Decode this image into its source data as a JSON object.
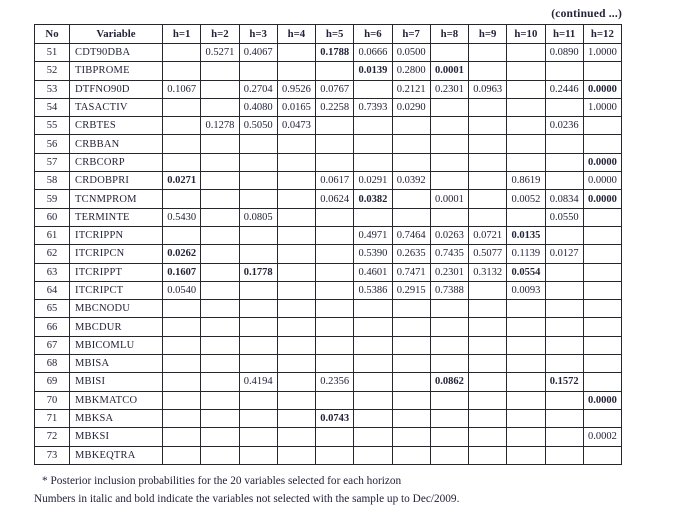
{
  "header": {
    "continued": "(continued ...)"
  },
  "table": {
    "columns": [
      "No",
      "Variable",
      "h=1",
      "h=2",
      "h=3",
      "h=4",
      "h=5",
      "h=6",
      "h=7",
      "h=8",
      "h=9",
      "h=10",
      "h=11",
      "h=12"
    ],
    "bold_marker_note": "cells prefixed with * are shown in bold (variables not selected with the sample up to Dec/2009)",
    "rows": [
      {
        "no": "51",
        "variable": "CDT90DBA",
        "cells": [
          "",
          "0.5271",
          "0.4067",
          "",
          "*0.1788",
          "0.0666",
          "0.0500",
          "",
          "",
          "",
          "0.0890",
          "1.0000"
        ]
      },
      {
        "no": "52",
        "variable": "TIBPROME",
        "cells": [
          "",
          "",
          "",
          "",
          "",
          "*0.0139",
          "0.2800",
          "*0.0001",
          "",
          "",
          "",
          ""
        ]
      },
      {
        "no": "53",
        "variable": "DTFNO90D",
        "cells": [
          "0.1067",
          "",
          "0.2704",
          "0.9526",
          "0.0767",
          "",
          "0.2121",
          "0.2301",
          "0.0963",
          "",
          "0.2446",
          "*0.0000"
        ]
      },
      {
        "no": "54",
        "variable": "TASACTIV",
        "cells": [
          "",
          "",
          "0.4080",
          "0.0165",
          "0.2258",
          "0.7393",
          "0.0290",
          "",
          "",
          "",
          "",
          "1.0000"
        ]
      },
      {
        "no": "55",
        "variable": "CRBTES",
        "cells": [
          "",
          "0.1278",
          "0.5050",
          "0.0473",
          "",
          "",
          "",
          "",
          "",
          "",
          "0.0236",
          ""
        ]
      },
      {
        "no": "56",
        "variable": "CRBBAN",
        "cells": [
          "",
          "",
          "",
          "",
          "",
          "",
          "",
          "",
          "",
          "",
          "",
          ""
        ]
      },
      {
        "no": "57",
        "variable": "CRBCORP",
        "cells": [
          "",
          "",
          "",
          "",
          "",
          "",
          "",
          "",
          "",
          "",
          "",
          "*0.0000"
        ]
      },
      {
        "no": "58",
        "variable": "CRDOBPRI",
        "cells": [
          "*0.0271",
          "",
          "",
          "",
          "0.0617",
          "0.0291",
          "0.0392",
          "",
          "",
          "0.8619",
          "",
          "0.0000"
        ]
      },
      {
        "no": "59",
        "variable": "TCNMPROM",
        "cells": [
          "",
          "",
          "",
          "",
          "0.0624",
          "*0.0382",
          "",
          "0.0001",
          "",
          "0.0052",
          "0.0834",
          "*0.0000"
        ]
      },
      {
        "no": "60",
        "variable": "TERMINTE",
        "cells": [
          "0.5430",
          "",
          "0.0805",
          "",
          "",
          "",
          "",
          "",
          "",
          "",
          "0.0550",
          ""
        ]
      },
      {
        "no": "61",
        "variable": "ITCRIPPN",
        "cells": [
          "",
          "",
          "",
          "",
          "",
          "0.4971",
          "0.7464",
          "0.0263",
          "0.0721",
          "*0.0135",
          "",
          ""
        ]
      },
      {
        "no": "62",
        "variable": "ITCRIPCN",
        "cells": [
          "*0.0262",
          "",
          "",
          "",
          "",
          "0.5390",
          "0.2635",
          "0.7435",
          "0.5077",
          "0.1139",
          "0.0127",
          ""
        ]
      },
      {
        "no": "63",
        "variable": "ITCRIPPT",
        "cells": [
          "*0.1607",
          "",
          "*0.1778",
          "",
          "",
          "0.4601",
          "0.7471",
          "0.2301",
          "0.3132",
          "*0.0554",
          "",
          ""
        ]
      },
      {
        "no": "64",
        "variable": "ITCRIPCT",
        "cells": [
          "0.0540",
          "",
          "",
          "",
          "",
          "0.5386",
          "0.2915",
          "0.7388",
          "",
          "0.0093",
          "",
          ""
        ]
      },
      {
        "no": "65",
        "variable": "MBCNODU",
        "cells": [
          "",
          "",
          "",
          "",
          "",
          "",
          "",
          "",
          "",
          "",
          "",
          ""
        ]
      },
      {
        "no": "66",
        "variable": "MBCDUR",
        "cells": [
          "",
          "",
          "",
          "",
          "",
          "",
          "",
          "",
          "",
          "",
          "",
          ""
        ]
      },
      {
        "no": "67",
        "variable": "MBICOMLU",
        "cells": [
          "",
          "",
          "",
          "",
          "",
          "",
          "",
          "",
          "",
          "",
          "",
          ""
        ]
      },
      {
        "no": "68",
        "variable": "MBISA",
        "cells": [
          "",
          "",
          "",
          "",
          "",
          "",
          "",
          "",
          "",
          "",
          "",
          ""
        ]
      },
      {
        "no": "69",
        "variable": "MBISI",
        "cells": [
          "",
          "",
          "0.4194",
          "",
          "0.2356",
          "",
          "",
          "*0.0862",
          "",
          "",
          "*0.1572",
          ""
        ]
      },
      {
        "no": "70",
        "variable": "MBKMATCO",
        "cells": [
          "",
          "",
          "",
          "",
          "",
          "",
          "",
          "",
          "",
          "",
          "",
          "*0.0000"
        ]
      },
      {
        "no": "71",
        "variable": "MBKSA",
        "cells": [
          "",
          "",
          "",
          "",
          "*0.0743",
          "",
          "",
          "",
          "",
          "",
          "",
          ""
        ]
      },
      {
        "no": "72",
        "variable": "MBKSI",
        "cells": [
          "",
          "",
          "",
          "",
          "",
          "",
          "",
          "",
          "",
          "",
          "",
          "0.0002"
        ]
      },
      {
        "no": "73",
        "variable": "MBKEQTRA",
        "cells": [
          "",
          "",
          "",
          "",
          "",
          "",
          "",
          "",
          "",
          "",
          "",
          ""
        ]
      }
    ]
  },
  "footnotes": [
    "* Posterior inclusion probabilities for the 20 variables selected for each horizon",
    "Numbers in italic and bold indicate the variables not selected with the sample up to Dec/2009."
  ]
}
